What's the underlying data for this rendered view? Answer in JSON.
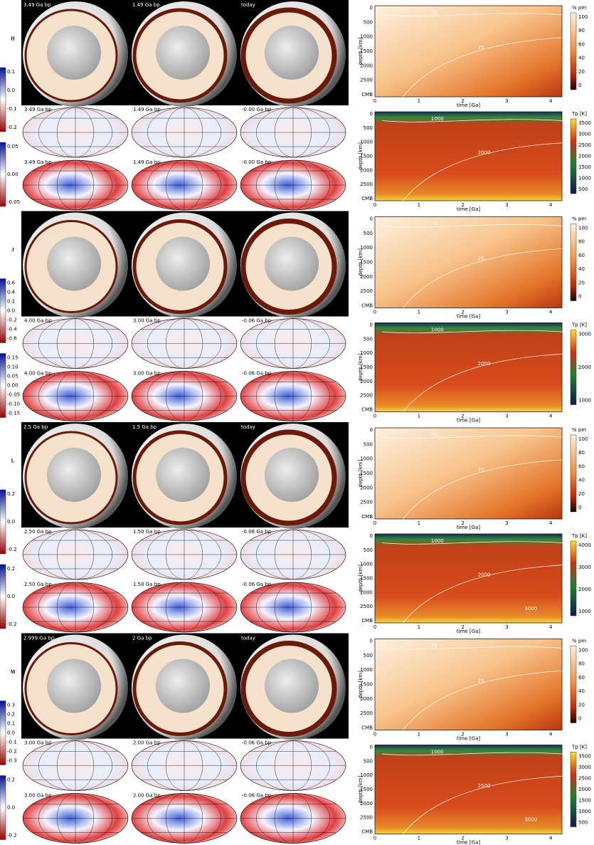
{
  "panels": [
    {
      "label": "H",
      "sphere_labels": [
        "3.49 Ga bp",
        "1.49 Ga bp",
        "today"
      ],
      "scale_1": [
        "0.1",
        "0.0",
        "-0.1",
        "-0.2"
      ],
      "maps_1": [
        "3.49 Ga bp",
        "1.49 Ga bp",
        "-0.00 Ga bp"
      ],
      "scale_2": [
        "0.05",
        "0.00",
        "-0.05"
      ],
      "maps_2": [
        "3.49 Ga bp",
        "1.49 Ga bp",
        "-0.00 Ga bp"
      ],
      "melt": {
        "title": "% pm",
        "ticks": [
          "100",
          "80",
          "60",
          "40",
          "20",
          "0"
        ],
        "contours": [
          "75",
          "25"
        ]
      },
      "temp": {
        "title": "Tp [K]",
        "ticks": [
          "3500",
          "3000",
          "2500",
          "2000",
          "1500",
          "1000",
          "500"
        ],
        "contours": [
          "1000",
          "2000"
        ]
      }
    },
    {
      "label": "J",
      "scale_1": [
        "0.6",
        "0.4",
        "0.2",
        "0.0",
        "-0.2",
        "-0.4",
        "-0.6"
      ],
      "maps_1": [
        "4.00 Ga bp",
        "3.00 Ga bp",
        "-0.06 Ga bp"
      ],
      "scale_2": [
        "0.15",
        "0.10",
        "0.05",
        "0.00",
        "-0.05",
        "-0.10",
        "-0.15"
      ],
      "maps_2": [
        "4.00 Ga bp",
        "3.00 Ga bp",
        "-0.06 Ga bp"
      ],
      "melt": {
        "title": "% pm",
        "ticks": [
          "100",
          "80",
          "60",
          "40",
          "20",
          "0"
        ],
        "contours": [
          "75",
          "25"
        ]
      },
      "temp": {
        "title": "Tp [K]",
        "ticks": [
          "3000",
          "2000",
          "1000"
        ],
        "contours": [
          "1000",
          "2000"
        ]
      }
    },
    {
      "label": "L",
      "sphere_labels": [
        "2.5 Ga bp",
        "1.5 Ga bp",
        "today"
      ],
      "scale_1": [
        "0.2",
        "0.0",
        "-0.2"
      ],
      "maps_1": [
        "2.50 Ga bp",
        "1.50 Ga bp",
        "-0.06 Ga bp"
      ],
      "scale_2": [
        "0.2",
        "0.0",
        "-0.2"
      ],
      "maps_2": [
        "2.50 Ga bp",
        "1.50 Ga bp",
        "-0.06 Ga bp"
      ],
      "melt": {
        "title": "% pm",
        "ticks": [
          "100",
          "80",
          "60",
          "40",
          "20",
          "0"
        ],
        "contours": [
          "75",
          "25"
        ]
      },
      "temp": {
        "title": "Tp [K]",
        "ticks": [
          "4000",
          "3000",
          "2000",
          "1000"
        ],
        "contours": [
          "1000",
          "2000",
          "3000"
        ]
      }
    },
    {
      "label": "M",
      "sphere_labels": [
        "2.999 Ga bp",
        "2 Ga bp",
        "today"
      ],
      "scale_1": [
        "0.3",
        "0.2",
        "0.1",
        "0.0",
        "-0.1",
        "-0.2",
        "-0.3"
      ],
      "maps_1": [
        "3.00 Ga bp",
        "2.00 Ga bp",
        "-0.06 Ga bp"
      ],
      "scale_2": [
        "0.2",
        "0.0",
        "-0.2"
      ],
      "maps_2": [
        "3.00 Ga bp",
        "2.00 Ga bp",
        "-0.06 Ga bp"
      ],
      "melt": {
        "title": "% pm",
        "ticks": [
          "100",
          "80",
          "60",
          "40",
          "20",
          "0"
        ],
        "contours": [
          "75",
          "25"
        ]
      },
      "temp": {
        "title": "Tp [K]",
        "ticks": [
          "3500",
          "3000",
          "2500",
          "2000",
          "1500",
          "1000",
          "500"
        ],
        "contours": [
          "1000",
          "2500",
          "3000"
        ]
      }
    }
  ],
  "axes": {
    "xlabel": "time [Ga]",
    "ylabel": "depth [km]",
    "xticks": [
      "0",
      "1",
      "2",
      "3",
      "4"
    ],
    "yticks": [
      "0",
      "500",
      "1000",
      "1500",
      "2000",
      "2500",
      "CMB"
    ]
  }
}
